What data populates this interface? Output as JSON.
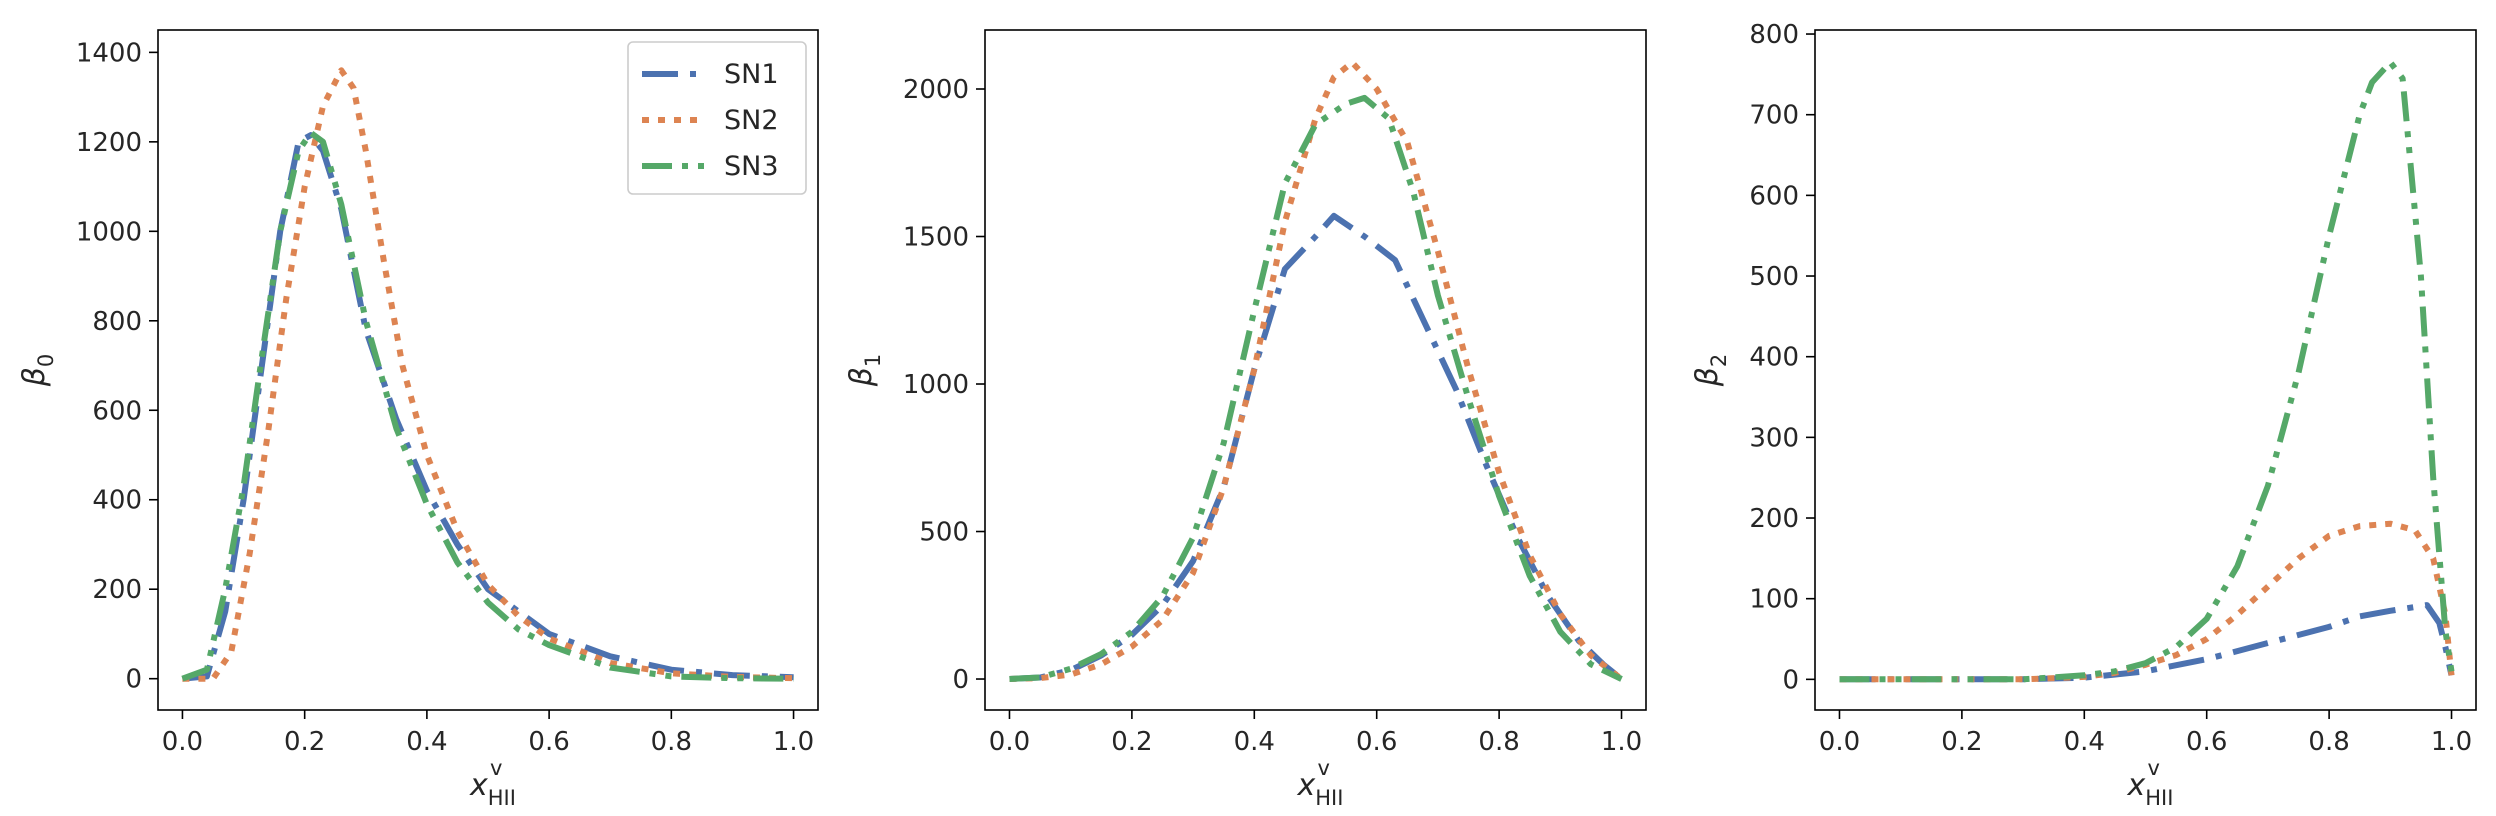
{
  "colors": {
    "SN1": "#4c72b0",
    "SN2": "#dd8452",
    "SN3": "#55a868"
  },
  "chart_data": [
    {
      "type": "line",
      "panel": "left",
      "xlabel": "x_HII^v",
      "ylabel": "β0",
      "xlim": [
        -0.04,
        1.04
      ],
      "ylim": [
        -70,
        1450
      ],
      "xticks": [
        0.0,
        0.2,
        0.4,
        0.6,
        0.8,
        1.0
      ],
      "xtick_labels": [
        "0.0",
        "0.2",
        "0.4",
        "0.6",
        "0.8",
        "1.0"
      ],
      "yticks": [
        0,
        200,
        400,
        600,
        800,
        1000,
        1200,
        1400
      ],
      "ytick_labels": [
        "0",
        "200",
        "400",
        "600",
        "800",
        "1000",
        "1200",
        "1400"
      ],
      "legend": {
        "position": "upper right",
        "entries": [
          "SN1",
          "SN2",
          "SN3"
        ]
      },
      "series": [
        {
          "name": "SN1",
          "style": "dashdot",
          "x": [
            0.0,
            0.04,
            0.07,
            0.1,
            0.13,
            0.16,
            0.19,
            0.21,
            0.23,
            0.26,
            0.3,
            0.35,
            0.4,
            0.45,
            0.5,
            0.55,
            0.6,
            0.7,
            0.8,
            0.9,
            1.0
          ],
          "y": [
            0,
            5,
            150,
            400,
            700,
            1000,
            1200,
            1215,
            1180,
            1050,
            780,
            580,
            420,
            300,
            200,
            150,
            100,
            50,
            20,
            8,
            3
          ]
        },
        {
          "name": "SN2",
          "style": "dotted",
          "x": [
            0.0,
            0.05,
            0.08,
            0.11,
            0.14,
            0.17,
            0.2,
            0.23,
            0.26,
            0.28,
            0.3,
            0.33,
            0.36,
            0.4,
            0.45,
            0.5,
            0.55,
            0.6,
            0.7,
            0.8,
            0.9,
            1.0
          ],
          "y": [
            0,
            0,
            60,
            280,
            550,
            850,
            1100,
            1280,
            1360,
            1320,
            1180,
            930,
            700,
            500,
            330,
            210,
            140,
            90,
            35,
            12,
            4,
            1
          ]
        },
        {
          "name": "SN3",
          "style": "dashdotdot",
          "x": [
            0.0,
            0.04,
            0.07,
            0.1,
            0.13,
            0.16,
            0.19,
            0.21,
            0.23,
            0.26,
            0.3,
            0.35,
            0.4,
            0.45,
            0.5,
            0.55,
            0.6,
            0.7,
            0.8,
            0.9,
            1.0
          ],
          "y": [
            0,
            20,
            200,
            430,
            720,
            1000,
            1180,
            1220,
            1200,
            1060,
            800,
            560,
            390,
            260,
            170,
            110,
            75,
            25,
            5,
            1,
            0
          ]
        }
      ]
    },
    {
      "type": "line",
      "panel": "middle",
      "xlabel": "x_HII^v",
      "ylabel": "β1",
      "xlim": [
        -0.04,
        1.04
      ],
      "ylim": [
        -105,
        2200
      ],
      "xticks": [
        0.0,
        0.2,
        0.4,
        0.6,
        0.8,
        1.0
      ],
      "xtick_labels": [
        "0.0",
        "0.2",
        "0.4",
        "0.6",
        "0.8",
        "1.0"
      ],
      "yticks": [
        0,
        500,
        1000,
        1500,
        2000
      ],
      "ytick_labels": [
        "0",
        "500",
        "1000",
        "1500",
        "2000"
      ],
      "series": [
        {
          "name": "SN1",
          "style": "dashdot",
          "x": [
            0.0,
            0.05,
            0.1,
            0.15,
            0.2,
            0.25,
            0.3,
            0.35,
            0.4,
            0.45,
            0.5,
            0.53,
            0.58,
            0.63,
            0.68,
            0.73,
            0.78,
            0.83,
            0.88,
            0.93,
            0.97,
            1.0
          ],
          "y": [
            0,
            5,
            30,
            80,
            150,
            250,
            400,
            650,
            1050,
            1390,
            1500,
            1570,
            1500,
            1420,
            1200,
            980,
            720,
            480,
            280,
            130,
            50,
            0
          ]
        },
        {
          "name": "SN2",
          "style": "dotted",
          "x": [
            0.0,
            0.05,
            0.1,
            0.15,
            0.2,
            0.25,
            0.3,
            0.35,
            0.4,
            0.45,
            0.5,
            0.53,
            0.56,
            0.6,
            0.65,
            0.7,
            0.75,
            0.8,
            0.85,
            0.9,
            0.95,
            1.0
          ],
          "y": [
            0,
            3,
            15,
            50,
            110,
            200,
            360,
            650,
            1050,
            1550,
            1900,
            2040,
            2090,
            2000,
            1820,
            1450,
            1050,
            700,
            420,
            220,
            80,
            0
          ]
        },
        {
          "name": "SN3",
          "style": "dashdotdot",
          "x": [
            0.0,
            0.05,
            0.1,
            0.15,
            0.2,
            0.25,
            0.3,
            0.35,
            0.4,
            0.45,
            0.5,
            0.55,
            0.58,
            0.62,
            0.66,
            0.7,
            0.75,
            0.8,
            0.85,
            0.9,
            0.95,
            1.0
          ],
          "y": [
            0,
            5,
            35,
            85,
            160,
            280,
            480,
            800,
            1250,
            1680,
            1880,
            1950,
            1970,
            1900,
            1650,
            1300,
            950,
            620,
            350,
            160,
            50,
            0
          ]
        }
      ]
    },
    {
      "type": "line",
      "panel": "right",
      "xlabel": "x_HII^v",
      "ylabel": "β2",
      "xlim": [
        -0.04,
        1.04
      ],
      "ylim": [
        -38,
        805
      ],
      "xticks": [
        0.0,
        0.2,
        0.4,
        0.6,
        0.8,
        1.0
      ],
      "xtick_labels": [
        "0.0",
        "0.2",
        "0.4",
        "0.6",
        "0.8",
        "1.0"
      ],
      "yticks": [
        0,
        100,
        200,
        300,
        400,
        500,
        600,
        700,
        800
      ],
      "ytick_labels": [
        "0",
        "100",
        "200",
        "300",
        "400",
        "500",
        "600",
        "700",
        "800"
      ],
      "series": [
        {
          "name": "SN1",
          "style": "dashdot",
          "x": [
            0.0,
            0.1,
            0.2,
            0.3,
            0.4,
            0.5,
            0.6,
            0.7,
            0.8,
            0.85,
            0.9,
            0.96,
            0.98,
            0.99,
            1.0
          ],
          "y": [
            0,
            0,
            0,
            0,
            2,
            10,
            25,
            45,
            65,
            78,
            85,
            92,
            70,
            40,
            5
          ]
        },
        {
          "name": "SN2",
          "style": "dotted",
          "x": [
            0.0,
            0.1,
            0.2,
            0.3,
            0.4,
            0.45,
            0.5,
            0.55,
            0.6,
            0.65,
            0.7,
            0.75,
            0.8,
            0.85,
            0.9,
            0.94,
            0.97,
            0.99,
            1.0
          ],
          "y": [
            0,
            0,
            0,
            0,
            3,
            8,
            18,
            30,
            50,
            80,
            115,
            150,
            178,
            190,
            193,
            185,
            150,
            80,
            5
          ]
        },
        {
          "name": "SN3",
          "style": "dashdotdot",
          "x": [
            0.0,
            0.1,
            0.2,
            0.3,
            0.4,
            0.45,
            0.5,
            0.55,
            0.6,
            0.65,
            0.7,
            0.75,
            0.8,
            0.85,
            0.87,
            0.9,
            0.92,
            0.95,
            0.97,
            0.99,
            1.0
          ],
          "y": [
            0,
            0,
            0,
            0,
            5,
            10,
            20,
            40,
            75,
            140,
            240,
            380,
            550,
            700,
            740,
            765,
            745,
            500,
            250,
            60,
            10
          ]
        }
      ]
    }
  ]
}
